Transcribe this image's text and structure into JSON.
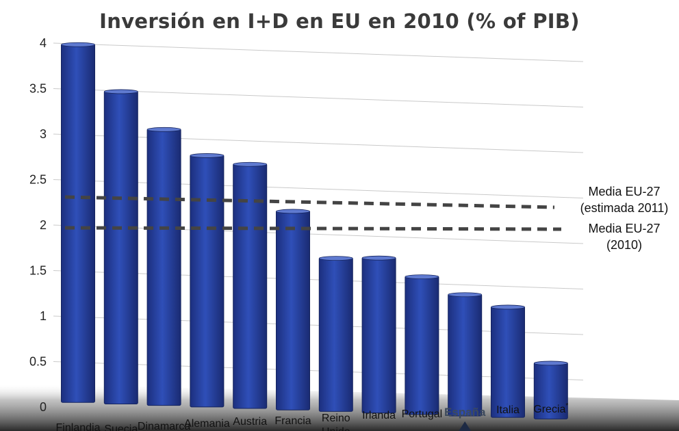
{
  "chart_data": {
    "type": "bar",
    "title": "Inversión en I+D en EU en 2010 (% of PIB)",
    "categories": [
      "Finlandia",
      "Suecia",
      "Dinamarca",
      "Alemania",
      "Austria",
      "Francia",
      "Reino Unido",
      "Irlanda",
      "Portugal",
      "España",
      "Italia",
      "Grecia"
    ],
    "values": [
      4.0,
      3.5,
      3.1,
      2.83,
      2.75,
      2.25,
      1.75,
      1.77,
      1.58,
      1.4,
      1.28,
      0.68
    ],
    "highlighted_category": "España",
    "footnote_markers": {
      "Grecia": "*"
    },
    "yticks": [
      0,
      0.5,
      1,
      1.5,
      2,
      2.5,
      3,
      3.5,
      4
    ],
    "ytick_labels": [
      "0",
      "0.5",
      "1",
      "1.5",
      "2",
      "2.5",
      "3",
      "3.5",
      "4"
    ],
    "ylim": [
      0,
      4
    ],
    "xlabel": "",
    "ylabel": "",
    "grid": true,
    "bar_color": "#2a45a8",
    "reference_lines": [
      {
        "label_lines": [
          "Media EU-27",
          "(estimada 2011)"
        ],
        "value": 2.25,
        "style": "dashed",
        "color": "#444444"
      },
      {
        "label_lines": [
          "Media EU-27",
          "(2010)"
        ],
        "value": 1.97,
        "style": "dashed",
        "color": "#444444"
      }
    ]
  }
}
